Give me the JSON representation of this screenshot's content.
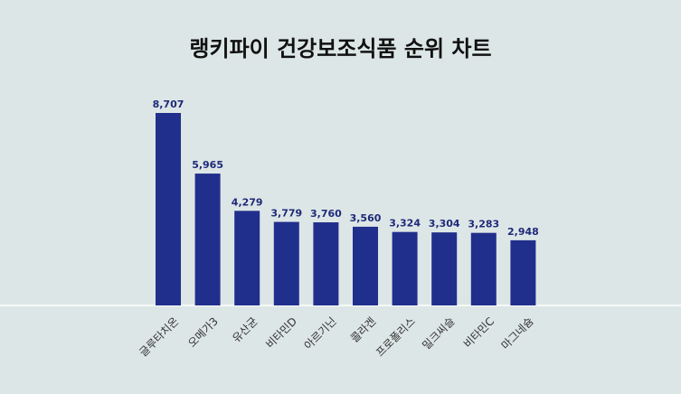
{
  "chart_data": {
    "type": "bar",
    "title": "랭키파이 건강보조식품 순위 차트",
    "categories": [
      "글루타치온",
      "오메가3",
      "유산균",
      "비타민D",
      "아르기닌",
      "콜라겐",
      "프로폴리스",
      "밀크씨슬",
      "비타민C",
      "마그네슘"
    ],
    "values": [
      8707,
      5965,
      4279,
      3779,
      3760,
      3560,
      3324,
      3304,
      3283,
      2948
    ],
    "value_labels": [
      "8,707",
      "5,965",
      "4,279",
      "3,779",
      "3,760",
      "3,560",
      "3,324",
      "3,304",
      "3,283",
      "2,948"
    ],
    "ylim": [
      0,
      8707
    ],
    "grid": false,
    "bar_color": "#212f8c",
    "background_color": "#dde6e6"
  }
}
